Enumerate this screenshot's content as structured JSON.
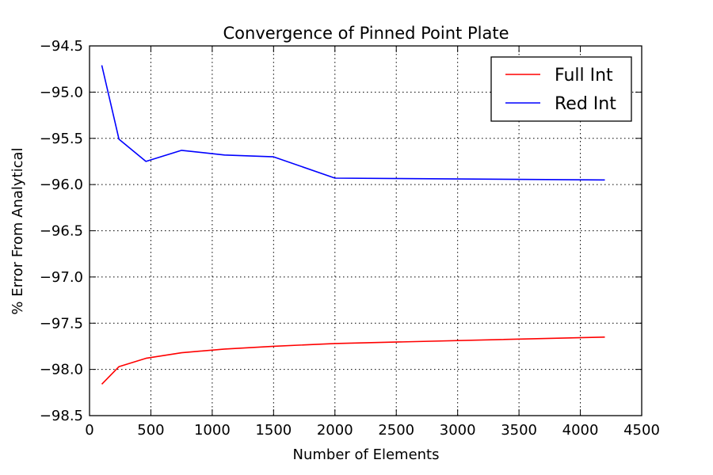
{
  "chart_data": {
    "type": "line",
    "title": "Convergence of Pinned Point Plate",
    "xlabel": "Number of Elements",
    "ylabel": "% Error From Analytical",
    "xlim": [
      0,
      4500
    ],
    "ylim": [
      -98.5,
      -94.5
    ],
    "xticks": [
      0,
      500,
      1000,
      1500,
      2000,
      2500,
      3000,
      3500,
      4000,
      4500
    ],
    "yticks": [
      -94.5,
      -95.0,
      -95.5,
      -96.0,
      -96.5,
      -97.0,
      -97.5,
      -98.0,
      -98.5
    ],
    "xtick_labels": [
      "0",
      "500",
      "1000",
      "1500",
      "2000",
      "2500",
      "3000",
      "3500",
      "4000",
      "4500"
    ],
    "ytick_labels": [
      "−94.5",
      "−95.0",
      "−95.5",
      "−96.0",
      "−96.5",
      "−97.0",
      "−97.5",
      "−98.0",
      "−98.5"
    ],
    "grid": true,
    "legend_position": "top-right",
    "series": [
      {
        "name": "Full Int",
        "color": "#ff0000",
        "x": [
          100,
          240,
          460,
          750,
          1100,
          1500,
          2000,
          4200
        ],
        "y": [
          -98.16,
          -97.97,
          -97.88,
          -97.82,
          -97.78,
          -97.75,
          -97.72,
          -97.65
        ]
      },
      {
        "name": "Red Int",
        "color": "#0000ff",
        "x": [
          100,
          240,
          460,
          750,
          1100,
          1500,
          2000,
          4200
        ],
        "y": [
          -94.71,
          -95.51,
          -95.75,
          -95.63,
          -95.68,
          -95.7,
          -95.93,
          -95.95
        ]
      }
    ]
  }
}
